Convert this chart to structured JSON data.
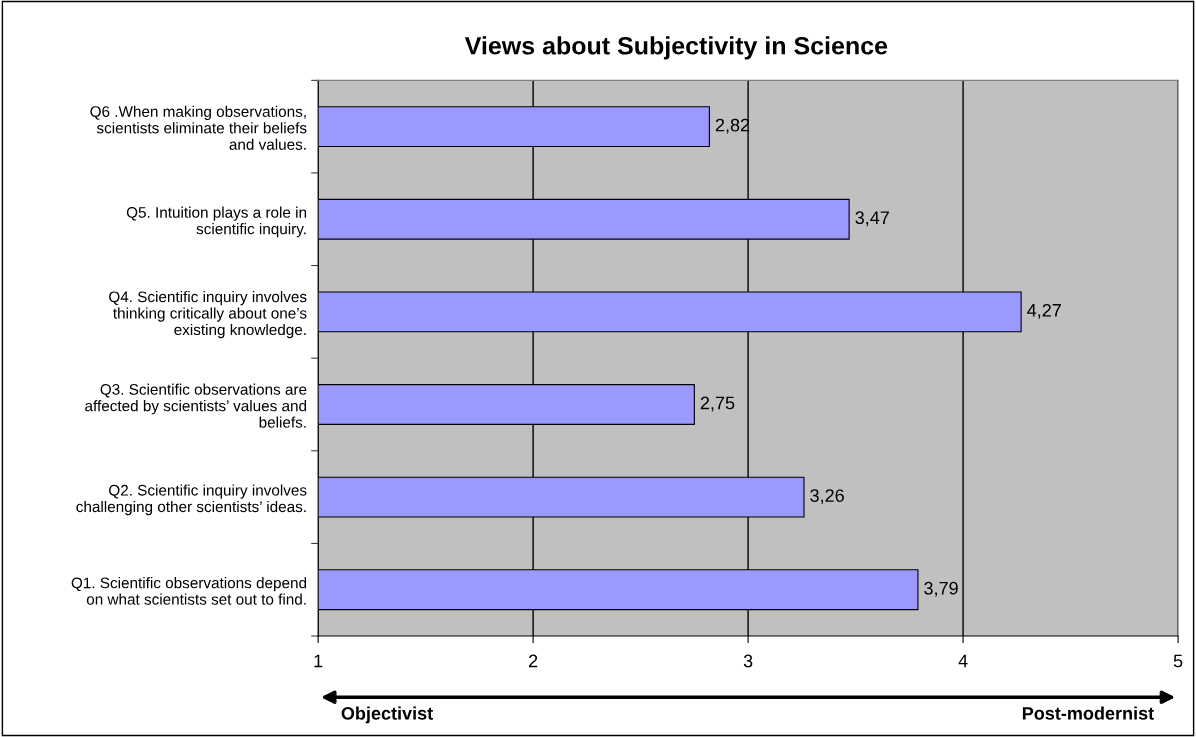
{
  "chart_data": {
    "type": "bar",
    "orientation": "horizontal",
    "title": "Views about Subjectivity in Science",
    "categories": [
      "Q6 .When making observations,\nscientists eliminate their beliefs\nand values.",
      "Q5. Intuition plays a role in\nscientific inquiry.",
      "Q4. Scientific inquiry involves\nthinking critically about one’s\nexisting knowledge.",
      "Q3. Scientific observations are\naffected by scientists’ values and\nbeliefs.",
      "Q2. Scientific inquiry involves\nchallenging other scientists’ ideas.",
      "Q1. Scientific observations depend\non what scientists set out to find."
    ],
    "values": [
      2.82,
      3.47,
      4.27,
      2.75,
      3.26,
      3.79
    ],
    "value_labels": [
      "2,82",
      "3,47",
      "4,27",
      "2,75",
      "3,26",
      "3,79"
    ],
    "color": "#9999ff",
    "xlim": [
      1,
      5
    ],
    "xticks": [
      1,
      2,
      3,
      4,
      5
    ],
    "grid": "x",
    "annotations": [
      "Objectivist",
      "Post-modernist"
    ]
  }
}
